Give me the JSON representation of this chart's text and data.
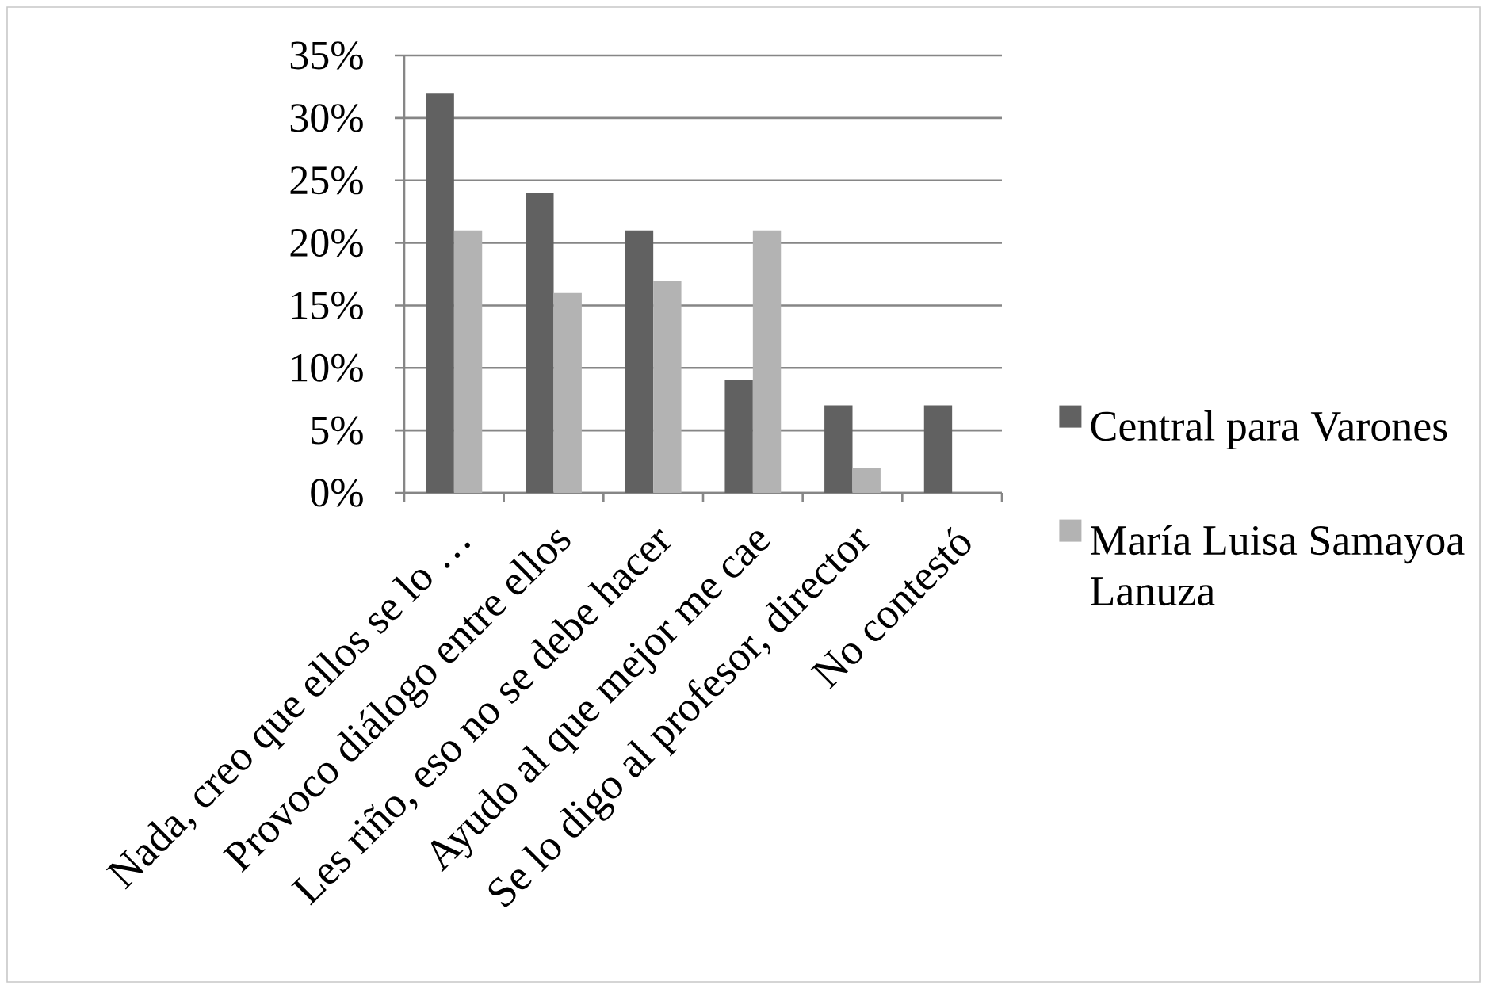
{
  "chart_data": {
    "type": "bar",
    "categories": [
      "Nada, creo que ellos se lo …",
      "Provoco diálogo entre ellos",
      "Les riño, eso no se debe hacer",
      "Ayudo al que mejor me cae",
      "Se lo digo al profesor, director",
      "No contestó"
    ],
    "series": [
      {
        "name": "Central para Varones",
        "color": "#616161",
        "values": [
          32,
          24,
          21,
          9,
          7,
          7
        ]
      },
      {
        "name": "María Luisa Samayoa Lanuza",
        "color": "#b3b3b3",
        "values": [
          21,
          16,
          17,
          21,
          2,
          0
        ]
      }
    ],
    "ylim": [
      0,
      35
    ],
    "yticks": [
      {
        "value": 0,
        "label": "0%"
      },
      {
        "value": 5,
        "label": "5%"
      },
      {
        "value": 10,
        "label": "10%"
      },
      {
        "value": 15,
        "label": "15%"
      },
      {
        "value": 20,
        "label": "20%"
      },
      {
        "value": 25,
        "label": "25%"
      },
      {
        "value": 30,
        "label": "30%"
      },
      {
        "value": 35,
        "label": "35%"
      }
    ],
    "grid": "y",
    "legend": "right"
  }
}
